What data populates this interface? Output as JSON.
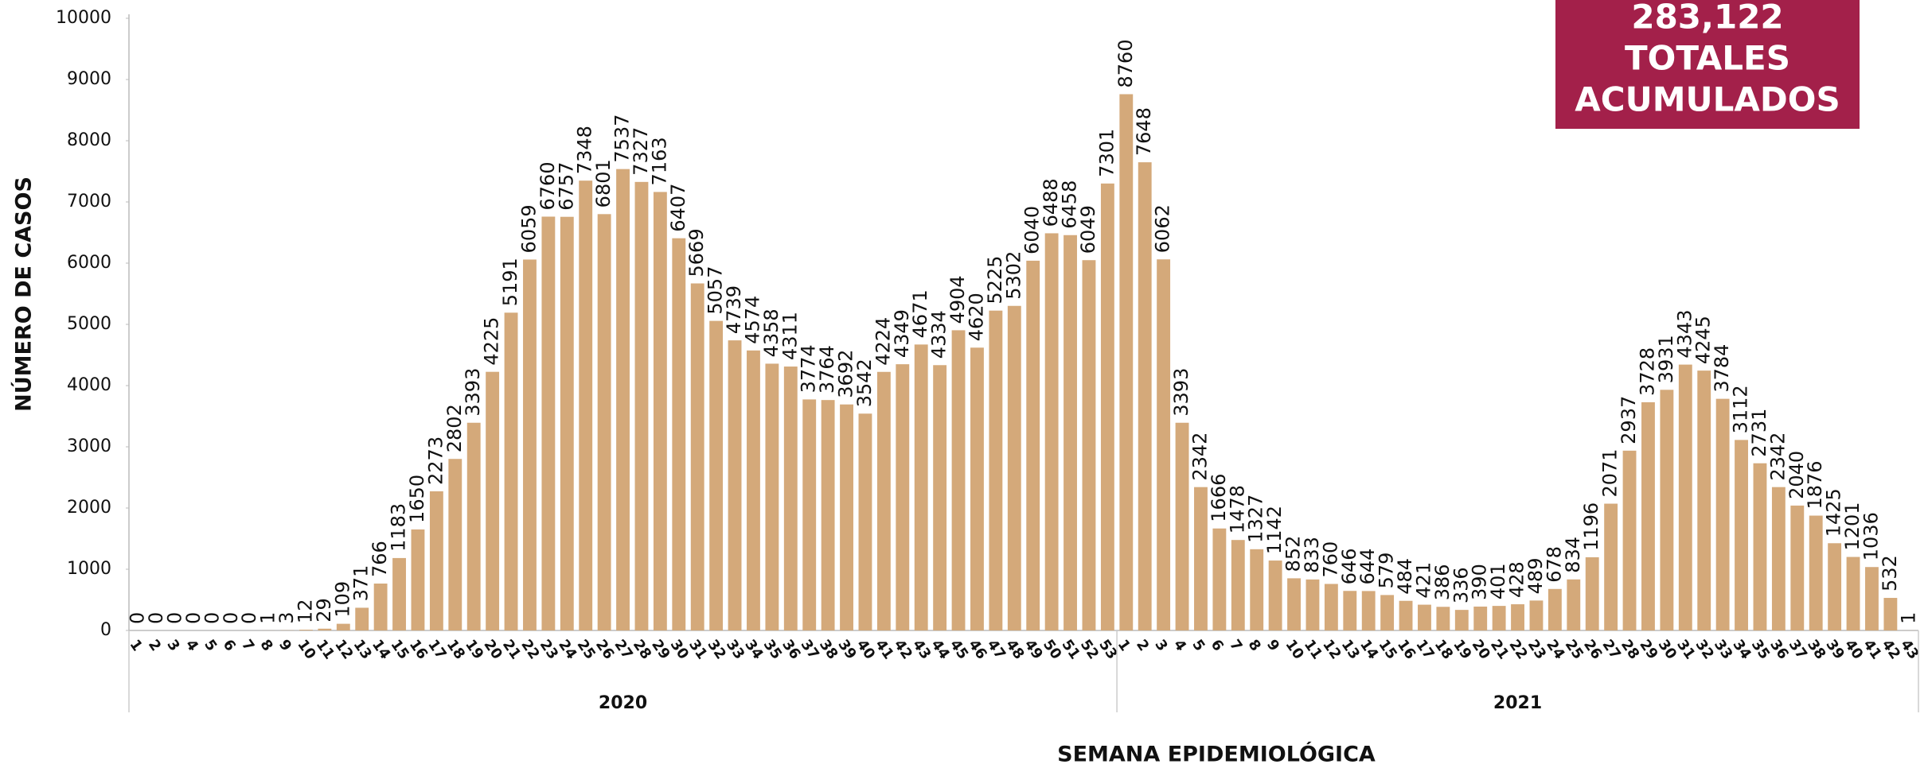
{
  "chart_data": {
    "type": "bar",
    "color": "#d4a97a",
    "y_axis_label": "NÚMERO DE CASOS",
    "x_axis_label": "SEMANA EPIDEMIOLÓGICA",
    "annotation": {
      "lines": [
        "283,122",
        "TOTALES",
        "ACUMULADOS"
      ],
      "color": "#a3204a"
    },
    "ylim": [
      0,
      10000
    ],
    "yticks": [
      0,
      1000,
      2000,
      3000,
      4000,
      5000,
      6000,
      7000,
      8000,
      9000,
      10000
    ],
    "groups": [
      {
        "name": "2020",
        "categories": [
          "1",
          "2",
          "3",
          "4",
          "5",
          "6",
          "7",
          "8",
          "9",
          "10",
          "11",
          "12",
          "13",
          "14",
          "15",
          "16",
          "17",
          "18",
          "19",
          "20",
          "21",
          "22",
          "23",
          "24",
          "25",
          "26",
          "27",
          "28",
          "29",
          "30",
          "31",
          "32",
          "33",
          "34",
          "35",
          "36",
          "37",
          "38",
          "39",
          "40",
          "41",
          "42",
          "43",
          "44",
          "45",
          "46",
          "47",
          "48",
          "49",
          "50",
          "51",
          "52",
          "53"
        ],
        "values": [
          0,
          0,
          0,
          0,
          0,
          0,
          0,
          1,
          3,
          12,
          29,
          109,
          371,
          766,
          1183,
          1650,
          2273,
          2802,
          3393,
          4225,
          5191,
          6059,
          6760,
          6757,
          7348,
          6801,
          7537,
          7327,
          7163,
          6407,
          5669,
          5057,
          4739,
          4574,
          4358,
          4311,
          3774,
          3764,
          3692,
          3542,
          4224,
          4349,
          4671,
          4334,
          4904,
          4620,
          5225,
          5302,
          6040,
          6488,
          6458,
          6049,
          7301
        ]
      },
      {
        "name": "2021",
        "categories": [
          "1",
          "2",
          "3",
          "4",
          "5",
          "6",
          "7",
          "8",
          "9",
          "10",
          "11",
          "12",
          "13",
          "14",
          "15",
          "16",
          "17",
          "18",
          "19",
          "20",
          "21",
          "22",
          "23",
          "24",
          "25",
          "26",
          "27",
          "28",
          "29",
          "30",
          "31",
          "32",
          "33",
          "34",
          "35",
          "36",
          "37",
          "38",
          "39",
          "40",
          "41",
          "42",
          "43"
        ],
        "values": [
          8760,
          7648,
          6062,
          3393,
          2342,
          1666,
          1478,
          1327,
          1142,
          852,
          833,
          760,
          646,
          644,
          579,
          484,
          421,
          386,
          336,
          390,
          401,
          428,
          489,
          678,
          834,
          1196,
          2071,
          2937,
          3728,
          3931,
          4343,
          4245,
          3784,
          3112,
          2731,
          2342,
          2040,
          1876,
          1425,
          1201,
          1036,
          532,
          1
        ]
      }
    ]
  }
}
